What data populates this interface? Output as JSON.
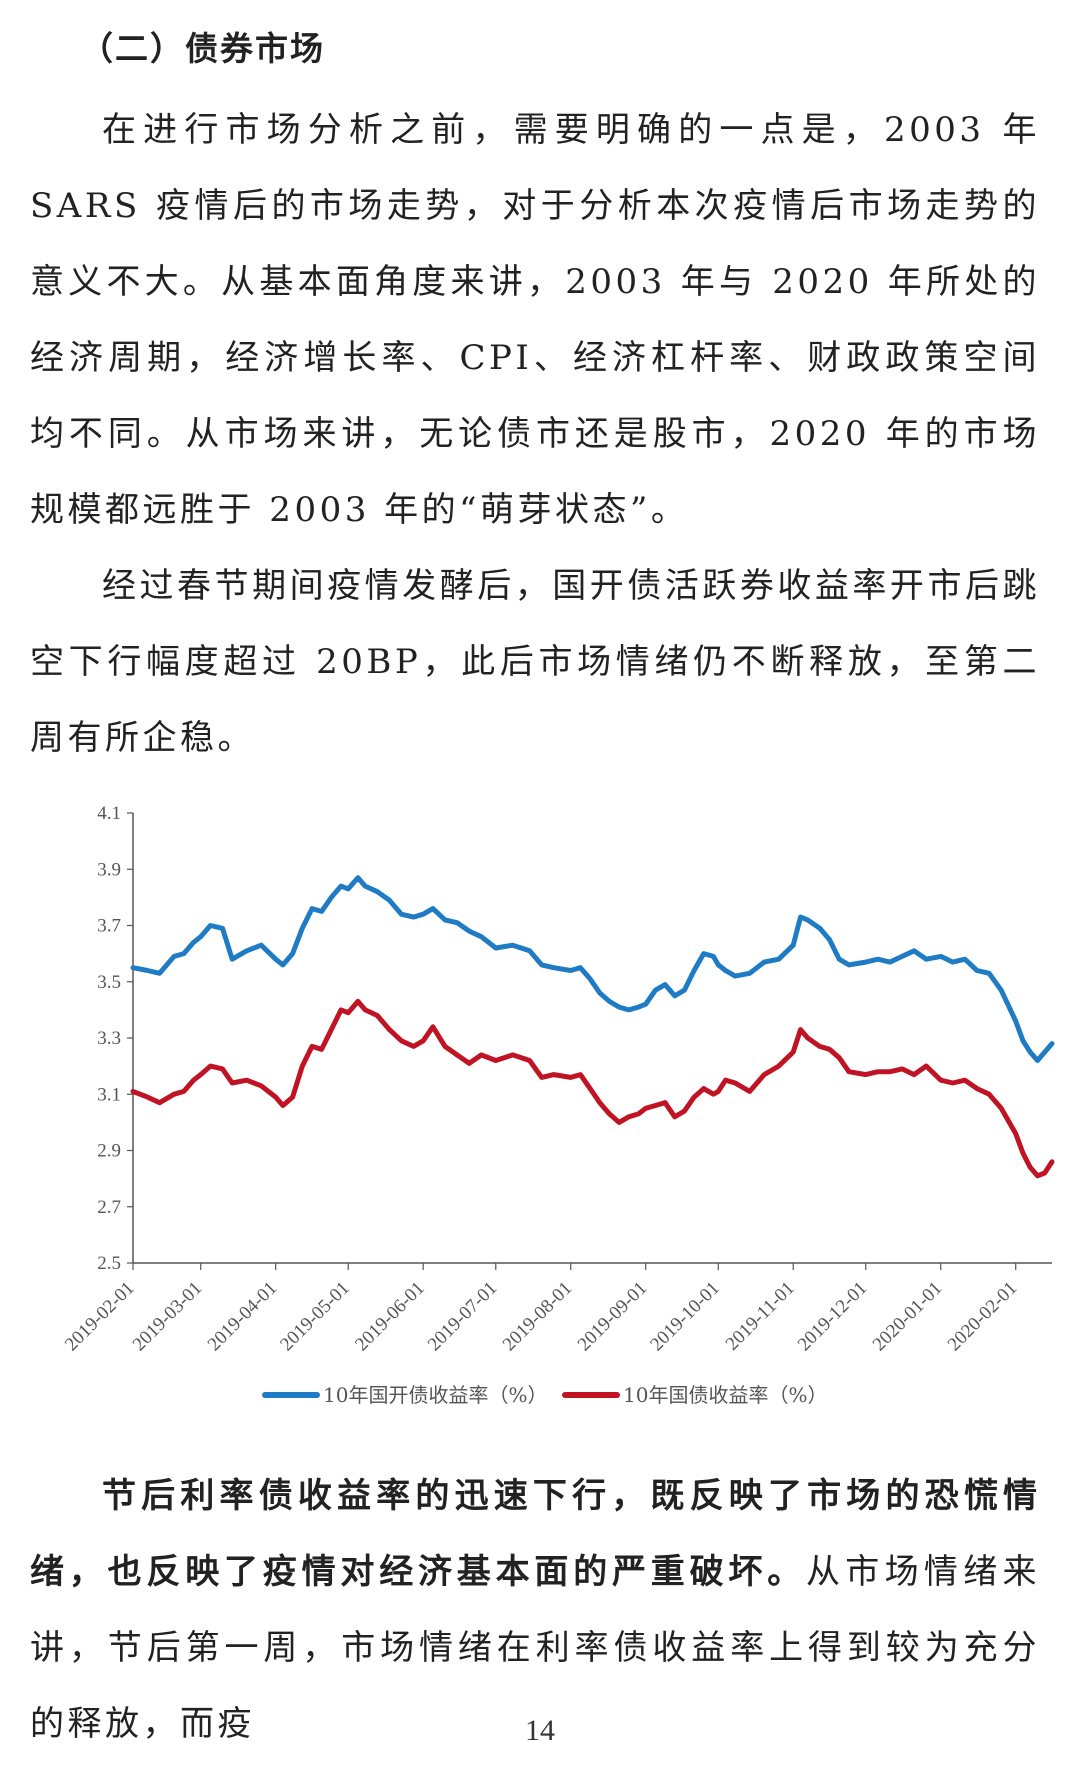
{
  "section_heading": "（二）债券市场",
  "paragraphs": [
    "在进行市场分析之前，需要明确的一点是，2003 年 SARS 疫情后的市场走势，对于分析本次疫情后市场走势的意义不大。从基本面角度来讲，2003 年与 2020 年所处的经济周期，经济增长率、CPI、经济杠杆率、财政政策空间均不同。从市场来讲，无论债市还是股市，2020 年的市场规模都远胜于 2003 年的“萌芽状态”。",
    "经过春节期间疫情发酵后，国开债活跃券收益率开市后跳空下行幅度超过 20BP，此后市场情绪仍不断释放，至第二周有所企稳。"
  ],
  "para3": {
    "bold": "节后利率债收益率的迅速下行，既反映了市场的恐慌情绪，也反映了疫情对经济基本面的严重破坏。",
    "normal": "从市场情绪来讲，节后第一周，市场情绪在利率债收益率上得到较为充分的释放，而疫"
  },
  "page_number": "14",
  "chart_data": {
    "type": "line",
    "ylim": [
      2.5,
      4.1
    ],
    "y_ticks": [
      "2.5",
      "2.7",
      "2.9",
      "3.1",
      "3.3",
      "3.5",
      "3.7",
      "3.9",
      "4.1"
    ],
    "x_ticks": [
      "2019-02-01",
      "2019-03-01",
      "2019-04-01",
      "2019-05-01",
      "2019-06-01",
      "2019-07-01",
      "2019-08-01",
      "2019-09-01",
      "2019-10-01",
      "2019-11-01",
      "2019-12-01",
      "2020-01-01",
      "2020-02-01"
    ],
    "legend_position": "bottom",
    "grid": false,
    "series": [
      {
        "name": "10年国开债收益率（%）",
        "color": "#1f7bc4",
        "points": [
          [
            "2019-02-01",
            3.55
          ],
          [
            "2019-02-07",
            3.54
          ],
          [
            "2019-02-12",
            3.53
          ],
          [
            "2019-02-18",
            3.59
          ],
          [
            "2019-02-22",
            3.6
          ],
          [
            "2019-02-26",
            3.64
          ],
          [
            "2019-03-01",
            3.66
          ],
          [
            "2019-03-05",
            3.7
          ],
          [
            "2019-03-10",
            3.69
          ],
          [
            "2019-03-14",
            3.58
          ],
          [
            "2019-03-20",
            3.61
          ],
          [
            "2019-03-26",
            3.63
          ],
          [
            "2019-04-01",
            3.58
          ],
          [
            "2019-04-04",
            3.56
          ],
          [
            "2019-04-08",
            3.6
          ],
          [
            "2019-04-12",
            3.69
          ],
          [
            "2019-04-16",
            3.76
          ],
          [
            "2019-04-20",
            3.75
          ],
          [
            "2019-04-24",
            3.8
          ],
          [
            "2019-04-28",
            3.84
          ],
          [
            "2019-05-01",
            3.83
          ],
          [
            "2019-05-05",
            3.87
          ],
          [
            "2019-05-08",
            3.84
          ],
          [
            "2019-05-13",
            3.82
          ],
          [
            "2019-05-18",
            3.79
          ],
          [
            "2019-05-23",
            3.74
          ],
          [
            "2019-05-28",
            3.73
          ],
          [
            "2019-06-01",
            3.74
          ],
          [
            "2019-06-05",
            3.76
          ],
          [
            "2019-06-10",
            3.72
          ],
          [
            "2019-06-15",
            3.71
          ],
          [
            "2019-06-20",
            3.68
          ],
          [
            "2019-06-25",
            3.66
          ],
          [
            "2019-07-01",
            3.62
          ],
          [
            "2019-07-08",
            3.63
          ],
          [
            "2019-07-15",
            3.61
          ],
          [
            "2019-07-20",
            3.56
          ],
          [
            "2019-07-25",
            3.55
          ],
          [
            "2019-08-01",
            3.54
          ],
          [
            "2019-08-05",
            3.55
          ],
          [
            "2019-08-09",
            3.51
          ],
          [
            "2019-08-13",
            3.46
          ],
          [
            "2019-08-17",
            3.43
          ],
          [
            "2019-08-21",
            3.41
          ],
          [
            "2019-08-25",
            3.4
          ],
          [
            "2019-08-29",
            3.41
          ],
          [
            "2019-09-01",
            3.42
          ],
          [
            "2019-09-05",
            3.47
          ],
          [
            "2019-09-09",
            3.49
          ],
          [
            "2019-09-13",
            3.45
          ],
          [
            "2019-09-17",
            3.47
          ],
          [
            "2019-09-21",
            3.54
          ],
          [
            "2019-09-25",
            3.6
          ],
          [
            "2019-09-29",
            3.59
          ],
          [
            "2019-10-01",
            3.56
          ],
          [
            "2019-10-04",
            3.54
          ],
          [
            "2019-10-08",
            3.52
          ],
          [
            "2019-10-14",
            3.53
          ],
          [
            "2019-10-20",
            3.57
          ],
          [
            "2019-10-26",
            3.58
          ],
          [
            "2019-11-01",
            3.63
          ],
          [
            "2019-11-04",
            3.73
          ],
          [
            "2019-11-07",
            3.72
          ],
          [
            "2019-11-12",
            3.69
          ],
          [
            "2019-11-16",
            3.65
          ],
          [
            "2019-11-20",
            3.58
          ],
          [
            "2019-11-24",
            3.56
          ],
          [
            "2019-12-01",
            3.57
          ],
          [
            "2019-12-06",
            3.58
          ],
          [
            "2019-12-11",
            3.57
          ],
          [
            "2019-12-16",
            3.59
          ],
          [
            "2019-12-21",
            3.61
          ],
          [
            "2019-12-26",
            3.58
          ],
          [
            "2020-01-01",
            3.59
          ],
          [
            "2020-01-06",
            3.57
          ],
          [
            "2020-01-11",
            3.58
          ],
          [
            "2020-01-16",
            3.54
          ],
          [
            "2020-01-21",
            3.53
          ],
          [
            "2020-01-26",
            3.47
          ],
          [
            "2020-02-01",
            3.36
          ],
          [
            "2020-02-04",
            3.29
          ],
          [
            "2020-02-07",
            3.25
          ],
          [
            "2020-02-10",
            3.22
          ],
          [
            "2020-02-13",
            3.25
          ],
          [
            "2020-02-16",
            3.28
          ]
        ]
      },
      {
        "name": "10年国债收益率（%）",
        "color": "#c01323",
        "points": [
          [
            "2019-02-01",
            3.11
          ],
          [
            "2019-02-07",
            3.09
          ],
          [
            "2019-02-12",
            3.07
          ],
          [
            "2019-02-18",
            3.1
          ],
          [
            "2019-02-22",
            3.11
          ],
          [
            "2019-02-26",
            3.15
          ],
          [
            "2019-03-01",
            3.17
          ],
          [
            "2019-03-05",
            3.2
          ],
          [
            "2019-03-10",
            3.19
          ],
          [
            "2019-03-14",
            3.14
          ],
          [
            "2019-03-20",
            3.15
          ],
          [
            "2019-03-26",
            3.13
          ],
          [
            "2019-04-01",
            3.09
          ],
          [
            "2019-04-04",
            3.06
          ],
          [
            "2019-04-08",
            3.09
          ],
          [
            "2019-04-12",
            3.2
          ],
          [
            "2019-04-16",
            3.27
          ],
          [
            "2019-04-20",
            3.26
          ],
          [
            "2019-04-24",
            3.33
          ],
          [
            "2019-04-28",
            3.4
          ],
          [
            "2019-05-01",
            3.39
          ],
          [
            "2019-05-05",
            3.43
          ],
          [
            "2019-05-08",
            3.4
          ],
          [
            "2019-05-13",
            3.38
          ],
          [
            "2019-05-18",
            3.33
          ],
          [
            "2019-05-23",
            3.29
          ],
          [
            "2019-05-28",
            3.27
          ],
          [
            "2019-06-01",
            3.29
          ],
          [
            "2019-06-05",
            3.34
          ],
          [
            "2019-06-10",
            3.27
          ],
          [
            "2019-06-15",
            3.24
          ],
          [
            "2019-06-20",
            3.21
          ],
          [
            "2019-06-25",
            3.24
          ],
          [
            "2019-07-01",
            3.22
          ],
          [
            "2019-07-08",
            3.24
          ],
          [
            "2019-07-15",
            3.22
          ],
          [
            "2019-07-20",
            3.16
          ],
          [
            "2019-07-25",
            3.17
          ],
          [
            "2019-08-01",
            3.16
          ],
          [
            "2019-08-05",
            3.17
          ],
          [
            "2019-08-09",
            3.12
          ],
          [
            "2019-08-13",
            3.07
          ],
          [
            "2019-08-17",
            3.03
          ],
          [
            "2019-08-21",
            3.0
          ],
          [
            "2019-08-25",
            3.02
          ],
          [
            "2019-08-29",
            3.03
          ],
          [
            "2019-09-01",
            3.05
          ],
          [
            "2019-09-05",
            3.06
          ],
          [
            "2019-09-09",
            3.07
          ],
          [
            "2019-09-13",
            3.02
          ],
          [
            "2019-09-17",
            3.04
          ],
          [
            "2019-09-21",
            3.09
          ],
          [
            "2019-09-25",
            3.12
          ],
          [
            "2019-09-29",
            3.1
          ],
          [
            "2019-10-01",
            3.11
          ],
          [
            "2019-10-04",
            3.15
          ],
          [
            "2019-10-08",
            3.14
          ],
          [
            "2019-10-14",
            3.11
          ],
          [
            "2019-10-20",
            3.17
          ],
          [
            "2019-10-26",
            3.2
          ],
          [
            "2019-11-01",
            3.25
          ],
          [
            "2019-11-04",
            3.33
          ],
          [
            "2019-11-07",
            3.3
          ],
          [
            "2019-11-12",
            3.27
          ],
          [
            "2019-11-16",
            3.26
          ],
          [
            "2019-11-20",
            3.23
          ],
          [
            "2019-11-24",
            3.18
          ],
          [
            "2019-12-01",
            3.17
          ],
          [
            "2019-12-06",
            3.18
          ],
          [
            "2019-12-11",
            3.18
          ],
          [
            "2019-12-16",
            3.19
          ],
          [
            "2019-12-21",
            3.17
          ],
          [
            "2019-12-26",
            3.2
          ],
          [
            "2020-01-01",
            3.15
          ],
          [
            "2020-01-06",
            3.14
          ],
          [
            "2020-01-11",
            3.15
          ],
          [
            "2020-01-16",
            3.12
          ],
          [
            "2020-01-21",
            3.1
          ],
          [
            "2020-01-26",
            3.05
          ],
          [
            "2020-02-01",
            2.96
          ],
          [
            "2020-02-04",
            2.89
          ],
          [
            "2020-02-07",
            2.84
          ],
          [
            "2020-02-10",
            2.81
          ],
          [
            "2020-02-13",
            2.82
          ],
          [
            "2020-02-16",
            2.86
          ]
        ]
      }
    ]
  }
}
